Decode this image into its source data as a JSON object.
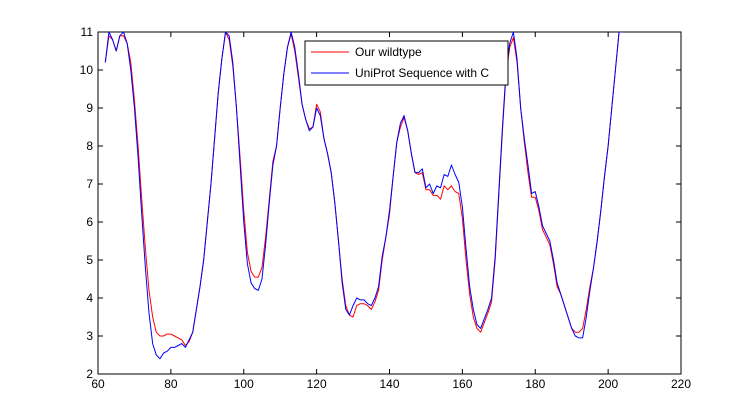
{
  "chart_data": {
    "type": "line",
    "title": "",
    "xlabel": "",
    "ylabel": "",
    "xlim": [
      60,
      220
    ],
    "ylim": [
      2,
      11
    ],
    "xticks": [
      60,
      80,
      100,
      120,
      140,
      160,
      180,
      200,
      220
    ],
    "yticks": [
      2,
      3,
      4,
      5,
      6,
      7,
      8,
      9,
      10,
      11
    ],
    "grid": false,
    "legend_position": "top-center",
    "series": [
      {
        "name": "Our wildtype",
        "color": "#ff0000",
        "x": [
          62,
          63,
          64,
          65,
          66,
          67,
          68,
          69,
          70,
          71,
          72,
          73,
          74,
          75,
          76,
          77,
          78,
          79,
          80,
          81,
          82,
          83,
          84,
          85,
          86,
          87,
          88,
          89,
          90,
          91,
          92,
          93,
          94,
          95,
          96,
          97,
          98,
          99,
          100,
          101,
          102,
          103,
          104,
          105,
          106,
          107,
          108,
          109,
          110,
          111,
          112,
          113,
          114,
          115,
          116,
          117,
          118,
          119,
          120,
          121,
          122,
          123,
          124,
          125,
          126,
          127,
          128,
          129,
          130,
          131,
          132,
          133,
          134,
          135,
          136,
          137,
          138,
          139,
          140,
          141,
          142,
          143,
          144,
          145,
          146,
          147,
          148,
          149,
          150,
          151,
          152,
          153,
          154,
          155,
          156,
          157,
          158,
          159,
          160,
          161,
          162,
          163,
          164,
          165,
          166,
          167,
          168,
          169,
          170,
          171,
          172,
          173,
          174,
          175,
          176,
          177,
          178,
          179,
          180,
          181,
          182,
          183,
          184,
          185,
          186,
          187,
          188,
          189,
          190,
          191,
          192,
          193,
          194,
          195,
          196,
          197,
          198,
          199,
          200,
          201,
          202,
          203,
          204
        ],
        "y": [
          10.2,
          10.9,
          10.8,
          10.5,
          10.9,
          10.9,
          10.7,
          10.2,
          9.2,
          8.0,
          6.6,
          5.3,
          4.2,
          3.5,
          3.1,
          3.0,
          3.0,
          3.05,
          3.05,
          3.0,
          2.95,
          2.9,
          2.75,
          2.85,
          3.1,
          3.7,
          4.3,
          5.0,
          6.0,
          7.0,
          8.2,
          9.4,
          10.3,
          11.0,
          10.8,
          10.1,
          9.0,
          7.7,
          6.3,
          5.2,
          4.7,
          4.55,
          4.55,
          4.8,
          5.6,
          6.6,
          7.6,
          8.0,
          9.0,
          9.9,
          10.6,
          10.95,
          10.5,
          9.8,
          9.1,
          8.7,
          8.45,
          8.5,
          9.1,
          8.9,
          8.2,
          7.8,
          7.3,
          6.5,
          5.5,
          4.5,
          3.8,
          3.55,
          3.5,
          3.8,
          3.85,
          3.85,
          3.8,
          3.7,
          3.9,
          4.2,
          5.0,
          5.6,
          6.2,
          7.2,
          8.1,
          8.5,
          8.75,
          8.4,
          7.8,
          7.3,
          7.25,
          7.3,
          6.85,
          6.85,
          6.7,
          6.7,
          6.6,
          6.95,
          6.85,
          6.95,
          6.8,
          6.75,
          6.1,
          5.0,
          4.1,
          3.5,
          3.2,
          3.1,
          3.35,
          3.6,
          3.9,
          5.0,
          6.7,
          8.4,
          9.9,
          10.6,
          10.85,
          10.2,
          9.0,
          8.1,
          7.3,
          6.65,
          6.65,
          6.3,
          5.8,
          5.6,
          5.4,
          4.9,
          4.3,
          4.1,
          3.8,
          3.5,
          3.2,
          3.1,
          3.1,
          3.2,
          3.7,
          4.3,
          4.8,
          5.5,
          6.3,
          7.2,
          8.0,
          9.0,
          10.0,
          11.0,
          11.0
        ]
      },
      {
        "name": "UniProt Sequence with C",
        "color": "#0000ff",
        "x": [
          62,
          63,
          64,
          65,
          66,
          67,
          68,
          69,
          70,
          71,
          72,
          73,
          74,
          75,
          76,
          77,
          78,
          79,
          80,
          81,
          82,
          83,
          84,
          85,
          86,
          87,
          88,
          89,
          90,
          91,
          92,
          93,
          94,
          95,
          96,
          97,
          98,
          99,
          100,
          101,
          102,
          103,
          104,
          105,
          106,
          107,
          108,
          109,
          110,
          111,
          112,
          113,
          114,
          115,
          116,
          117,
          118,
          119,
          120,
          121,
          122,
          123,
          124,
          125,
          126,
          127,
          128,
          129,
          130,
          131,
          132,
          133,
          134,
          135,
          136,
          137,
          138,
          139,
          140,
          141,
          142,
          143,
          144,
          145,
          146,
          147,
          148,
          149,
          150,
          151,
          152,
          153,
          154,
          155,
          156,
          157,
          158,
          159,
          160,
          161,
          162,
          163,
          164,
          165,
          166,
          167,
          168,
          169,
          170,
          171,
          172,
          173,
          174,
          175,
          176,
          177,
          178,
          179,
          180,
          181,
          182,
          183,
          184,
          185,
          186,
          187,
          188,
          189,
          190,
          191,
          192,
          193,
          194,
          195,
          196,
          197,
          198,
          199,
          200,
          201,
          202,
          203,
          204
        ],
        "y": [
          10.2,
          11.0,
          10.8,
          10.5,
          10.9,
          11.0,
          10.7,
          10.0,
          9.0,
          7.7,
          6.2,
          4.8,
          3.6,
          2.8,
          2.5,
          2.4,
          2.55,
          2.6,
          2.7,
          2.7,
          2.75,
          2.8,
          2.7,
          2.9,
          3.1,
          3.7,
          4.3,
          5.0,
          6.0,
          7.0,
          8.2,
          9.4,
          10.3,
          11.0,
          10.9,
          10.2,
          9.0,
          7.5,
          6.0,
          4.9,
          4.4,
          4.25,
          4.2,
          4.5,
          5.4,
          6.5,
          7.5,
          8.0,
          9.0,
          9.9,
          10.6,
          11.0,
          10.6,
          9.9,
          9.1,
          8.7,
          8.4,
          8.5,
          9.0,
          8.8,
          8.2,
          7.8,
          7.3,
          6.5,
          5.5,
          4.4,
          3.7,
          3.55,
          3.8,
          4.0,
          3.95,
          3.95,
          3.85,
          3.8,
          4.0,
          4.3,
          5.1,
          5.6,
          6.3,
          7.2,
          8.1,
          8.6,
          8.8,
          8.4,
          7.8,
          7.3,
          7.3,
          7.4,
          6.9,
          7.0,
          6.75,
          6.95,
          6.9,
          7.25,
          7.2,
          7.5,
          7.25,
          7.05,
          6.4,
          5.3,
          4.3,
          3.7,
          3.3,
          3.2,
          3.45,
          3.7,
          4.0,
          5.1,
          6.8,
          8.5,
          10.0,
          10.7,
          11.0,
          10.3,
          9.0,
          8.2,
          7.5,
          6.75,
          6.8,
          6.4,
          5.9,
          5.7,
          5.5,
          5.0,
          4.4,
          4.1,
          3.8,
          3.5,
          3.2,
          3.0,
          2.95,
          2.95,
          3.5,
          4.2,
          4.8,
          5.5,
          6.3,
          7.2,
          8.0,
          9.0,
          10.0,
          11.0,
          11.0
        ]
      }
    ]
  }
}
